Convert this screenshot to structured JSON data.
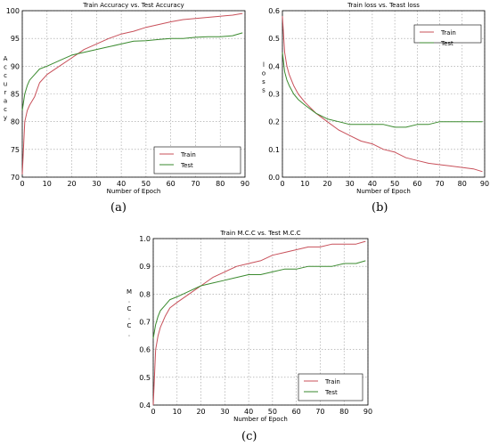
{
  "captions": {
    "a": "(a)",
    "b": "(b)",
    "c": "(c)"
  },
  "colors": {
    "train": "#c8505a",
    "test": "#3a8a2e",
    "grid": "#9a9a9a"
  },
  "chart_data": [
    {
      "id": "a",
      "type": "line",
      "title": "Train Accuracy vs. Test Accuracy",
      "xlabel": "Number of Epoch",
      "ylabel": "Accuracy",
      "xlim": [
        0,
        90
      ],
      "ylim": [
        70,
        100
      ],
      "xticks": [
        0,
        10,
        20,
        30,
        40,
        50,
        60,
        70,
        80,
        90
      ],
      "yticks": [
        70,
        75,
        80,
        85,
        90,
        95,
        100
      ],
      "grid": true,
      "legend_position": "bottom-right",
      "series": [
        {
          "name": "Train",
          "x": [
            0,
            1,
            2,
            3,
            5,
            7,
            10,
            15,
            20,
            25,
            30,
            35,
            40,
            45,
            50,
            55,
            60,
            65,
            70,
            75,
            80,
            85,
            89
          ],
          "y": [
            70.5,
            80,
            82,
            83,
            84.5,
            87,
            88.5,
            90,
            91.5,
            93,
            94,
            95,
            95.8,
            96.3,
            97,
            97.5,
            98,
            98.4,
            98.6,
            98.8,
            99,
            99.2,
            99.5
          ]
        },
        {
          "name": "Test",
          "x": [
            0,
            1,
            2,
            3,
            5,
            7,
            10,
            15,
            20,
            25,
            30,
            35,
            40,
            45,
            50,
            55,
            60,
            65,
            70,
            75,
            80,
            85,
            89
          ],
          "y": [
            82,
            85,
            86.5,
            87.5,
            88.5,
            89.5,
            90,
            91,
            92,
            92.5,
            93,
            93.5,
            94,
            94.5,
            94.6,
            94.8,
            95,
            95,
            95.2,
            95.3,
            95.3,
            95.5,
            96
          ]
        }
      ]
    },
    {
      "id": "b",
      "type": "line",
      "title": "Train loss vs. Teast loss",
      "xlabel": "Number of Epoch",
      "ylabel": "loss",
      "xlim": [
        0,
        90
      ],
      "ylim": [
        0,
        0.6
      ],
      "xticks": [
        0,
        10,
        20,
        30,
        40,
        50,
        60,
        70,
        80,
        90
      ],
      "yticks": [
        0.0,
        0.1,
        0.2,
        0.3,
        0.4,
        0.5,
        0.6
      ],
      "grid": true,
      "legend_position": "top-right",
      "series": [
        {
          "name": "Train",
          "x": [
            0,
            1,
            2,
            3,
            5,
            7,
            10,
            15,
            20,
            25,
            30,
            35,
            40,
            45,
            50,
            55,
            60,
            65,
            70,
            75,
            80,
            85,
            89
          ],
          "y": [
            0.58,
            0.45,
            0.4,
            0.37,
            0.33,
            0.3,
            0.27,
            0.23,
            0.2,
            0.17,
            0.15,
            0.13,
            0.12,
            0.1,
            0.09,
            0.07,
            0.06,
            0.05,
            0.045,
            0.04,
            0.035,
            0.03,
            0.02
          ]
        },
        {
          "name": "Test",
          "x": [
            0,
            1,
            2,
            3,
            5,
            7,
            10,
            15,
            20,
            25,
            30,
            35,
            40,
            45,
            50,
            55,
            60,
            65,
            70,
            75,
            80,
            85,
            89
          ],
          "y": [
            0.45,
            0.38,
            0.35,
            0.33,
            0.3,
            0.28,
            0.26,
            0.23,
            0.21,
            0.2,
            0.19,
            0.19,
            0.19,
            0.19,
            0.18,
            0.18,
            0.19,
            0.19,
            0.2,
            0.2,
            0.2,
            0.2,
            0.2
          ]
        }
      ]
    },
    {
      "id": "c",
      "type": "line",
      "title": "Train M.C.C vs. Test M.C.C",
      "xlabel": "Number of Epoch",
      "ylabel": "M.C.C.",
      "xlim": [
        0,
        90
      ],
      "ylim": [
        0.4,
        1.0
      ],
      "xticks": [
        0,
        10,
        20,
        30,
        40,
        50,
        60,
        70,
        80,
        90
      ],
      "yticks": [
        0.4,
        0.5,
        0.6,
        0.7,
        0.8,
        0.9,
        1.0
      ],
      "grid": true,
      "legend_position": "bottom-right",
      "series": [
        {
          "name": "Train",
          "x": [
            0,
            1,
            2,
            3,
            5,
            7,
            10,
            15,
            20,
            25,
            30,
            35,
            40,
            45,
            50,
            55,
            60,
            65,
            70,
            75,
            80,
            85,
            89
          ],
          "y": [
            0.4,
            0.6,
            0.65,
            0.68,
            0.72,
            0.75,
            0.77,
            0.8,
            0.83,
            0.86,
            0.88,
            0.9,
            0.91,
            0.92,
            0.94,
            0.95,
            0.96,
            0.97,
            0.97,
            0.98,
            0.98,
            0.98,
            0.99
          ]
        },
        {
          "name": "Test",
          "x": [
            0,
            1,
            2,
            3,
            5,
            7,
            10,
            15,
            20,
            25,
            30,
            35,
            40,
            45,
            50,
            55,
            60,
            65,
            70,
            75,
            80,
            85,
            89
          ],
          "y": [
            0.64,
            0.69,
            0.72,
            0.74,
            0.76,
            0.78,
            0.79,
            0.81,
            0.83,
            0.84,
            0.85,
            0.86,
            0.87,
            0.87,
            0.88,
            0.89,
            0.89,
            0.9,
            0.9,
            0.9,
            0.91,
            0.91,
            0.92
          ]
        }
      ]
    }
  ]
}
